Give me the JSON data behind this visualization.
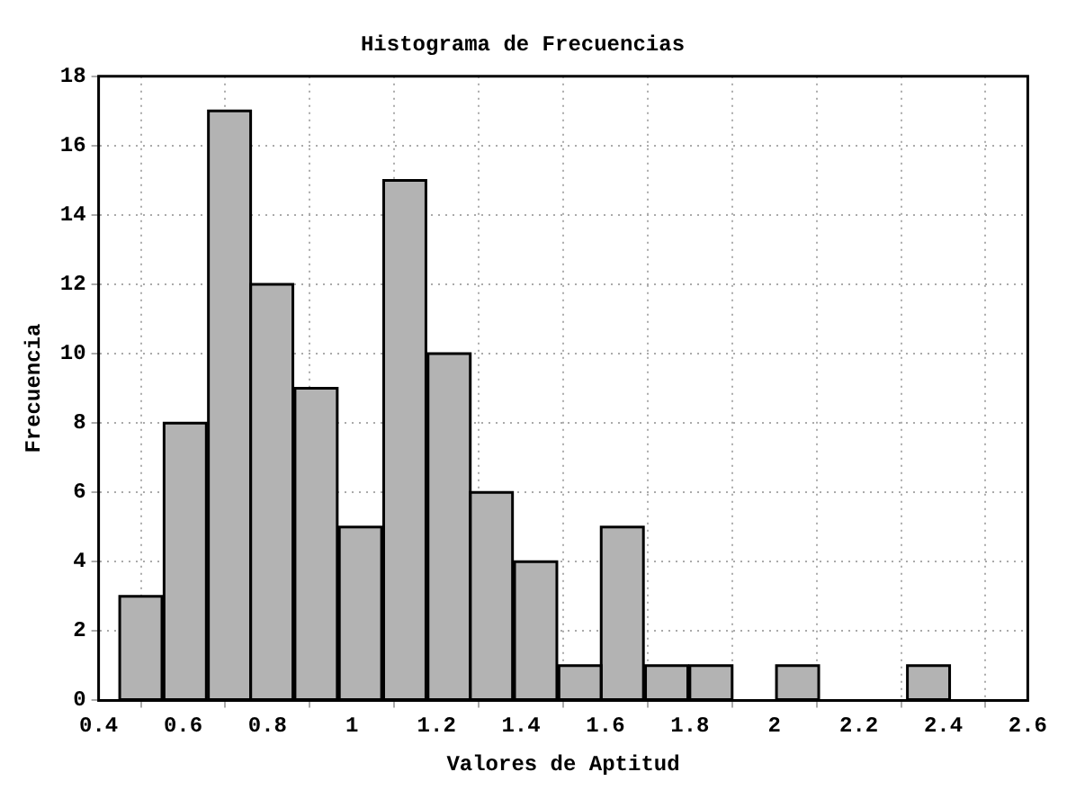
{
  "chart_data": {
    "type": "histogram",
    "title": "Histograma de Frecuencias",
    "xlabel": "Valores de Aptitud",
    "ylabel": "Frecuencia",
    "bins": [
      0.45,
      0.55,
      0.66,
      0.76,
      0.86,
      0.97,
      1.07,
      1.18,
      1.28,
      1.38,
      1.49,
      1.59,
      1.69,
      1.8,
      1.9,
      2.0,
      2.11,
      2.21,
      2.31,
      2.42
    ],
    "values": [
      3,
      8,
      17,
      12,
      9,
      5,
      15,
      10,
      6,
      4,
      1,
      5,
      1,
      1,
      0,
      1,
      0,
      0,
      1
    ],
    "color": "#b3b3b3",
    "xlim": [
      0.4,
      2.6
    ],
    "xticks": [
      0.4,
      0.6,
      0.8,
      1,
      1.2,
      1.4,
      1.6,
      1.8,
      2,
      2.2,
      2.4,
      2.6
    ],
    "ylim": [
      0,
      18
    ],
    "yticks": [
      0,
      2,
      4,
      6,
      8,
      10,
      12,
      14,
      16,
      18
    ],
    "grid": true,
    "legend": false
  }
}
